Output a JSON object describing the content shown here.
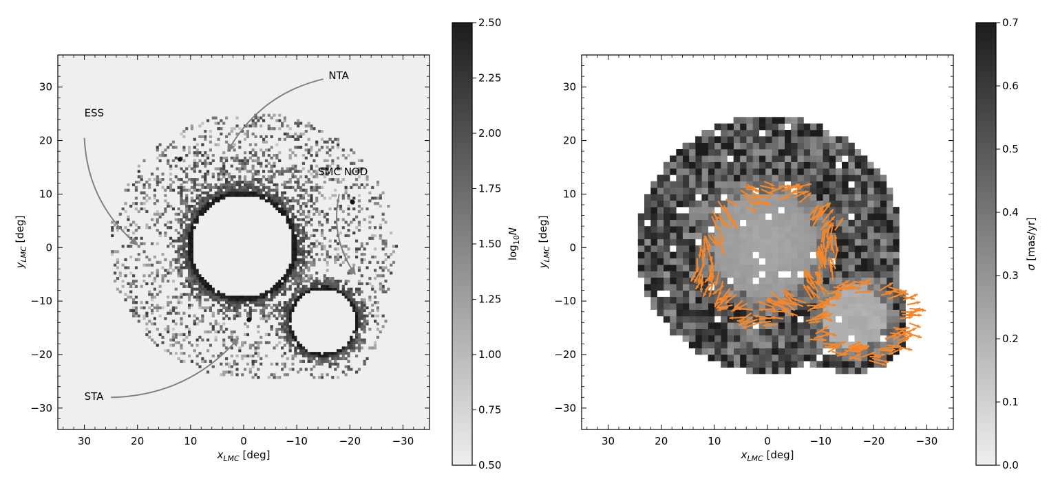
{
  "chart_data": [
    {
      "type": "heatmap",
      "xlabel_main": "x",
      "xlabel_sub": "LMC",
      "xlabel_unit": " [deg]",
      "ylabel_main": "y",
      "ylabel_sub": "LMC",
      "ylabel_unit": " [deg]",
      "xlim": [
        35,
        -35
      ],
      "ylim": [
        -34,
        36
      ],
      "xticks": [
        30,
        20,
        10,
        0,
        -10,
        -20,
        -30
      ],
      "xtick_labels": [
        "30",
        "20",
        "10",
        "0",
        "−10",
        "−20",
        "−30"
      ],
      "yticks": [
        30,
        20,
        10,
        0,
        -10,
        -20,
        -30
      ],
      "ytick_labels": [
        "30",
        "20",
        "10",
        "0",
        "−10",
        "−20",
        "−30"
      ],
      "grid": false,
      "colorbar": {
        "label_main": "log",
        "label_sub": "10",
        "label_var": "N",
        "range": [
          0.5,
          2.5
        ],
        "ticks": [
          0.5,
          0.75,
          1.0,
          1.25,
          1.5,
          1.75,
          2.0,
          2.25,
          2.5
        ],
        "tick_labels": [
          "0.50",
          "0.75",
          "1.00",
          "1.25",
          "1.50",
          "1.75",
          "2.00",
          "2.25",
          "2.50"
        ],
        "colormap": "gray_r"
      },
      "masked_regions": [
        {
          "name": "LMC",
          "center": [
            0,
            0
          ],
          "radius": 9.5
        },
        {
          "name": "SMC",
          "center": [
            -15.2,
            -14
          ],
          "radius": 6
        }
      ],
      "annotations": [
        {
          "text": "ESS",
          "text_at": [
            30,
            24.5
          ],
          "arrow_from": [
            30,
            20.5
          ],
          "arrow_to": [
            20,
            0.5
          ]
        },
        {
          "text": "NTA",
          "text_at": [
            -16,
            31.5
          ],
          "arrow_from": [
            -15,
            31.5
          ],
          "arrow_to": [
            3,
            18
          ]
        },
        {
          "text": "SMC NOD",
          "text_at": [
            -14,
            13.5
          ],
          "arrow_from": [
            -18,
            10
          ],
          "arrow_to": [
            -21,
            -5
          ]
        },
        {
          "text": "STA",
          "text_at": [
            30,
            -28.5
          ],
          "arrow_from": [
            25,
            -28
          ],
          "arrow_to": [
            1,
            -17
          ]
        }
      ]
    },
    {
      "type": "heatmap",
      "xlabel_main": "x",
      "xlabel_sub": "LMC",
      "xlabel_unit": " [deg]",
      "ylabel_main": "y",
      "ylabel_sub": "LMC",
      "ylabel_unit": " [deg]",
      "xlim": [
        35,
        -35
      ],
      "ylim": [
        -34,
        36
      ],
      "xticks": [
        30,
        20,
        10,
        0,
        -10,
        -20,
        -30
      ],
      "xtick_labels": [
        "30",
        "20",
        "10",
        "0",
        "−10",
        "−20",
        "−30"
      ],
      "yticks": [
        30,
        20,
        10,
        0,
        -10,
        -20,
        -30
      ],
      "ytick_labels": [
        "30",
        "20",
        "10",
        "0",
        "−10",
        "−20",
        "−30"
      ],
      "grid": false,
      "colorbar": {
        "label_main": "σ",
        "label_unit": " [mas/yr]",
        "range": [
          0.0,
          0.7
        ],
        "ticks": [
          0.0,
          0.1,
          0.2,
          0.3,
          0.4,
          0.5,
          0.6,
          0.7
        ],
        "tick_labels": [
          "0.0",
          "0.1",
          "0.2",
          "0.3",
          "0.4",
          "0.5",
          "0.6",
          "0.7"
        ],
        "colormap": "gray_r"
      },
      "vector_color": "#f5872a",
      "vector_field": "proper-motion arrows along ring around LMC (r≈12 deg) and around SMC (r≈7 deg)"
    }
  ],
  "colors": {
    "background_plot": "#efefef",
    "arrow_gray": "#808080",
    "vector_orange": "#f5872a"
  }
}
